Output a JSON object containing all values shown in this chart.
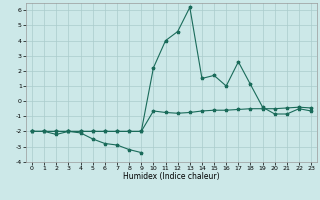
{
  "xlabel": "Humidex (Indice chaleur)",
  "x_values": [
    0,
    1,
    2,
    3,
    4,
    5,
    6,
    7,
    8,
    9,
    10,
    11,
    12,
    13,
    14,
    15,
    16,
    17,
    18,
    19,
    20,
    21,
    22,
    23
  ],
  "line1_x": [
    0,
    1,
    2,
    3,
    4,
    5,
    6,
    7,
    8,
    9
  ],
  "line1_y": [
    -2,
    -2,
    -2.2,
    -2,
    -2.1,
    -2.5,
    -2.8,
    -2.9,
    -3.2,
    -3.4
  ],
  "line2": [
    -2,
    -2,
    -2,
    -2,
    -2,
    -2,
    -2,
    -2,
    -2,
    -2,
    -0.65,
    -0.75,
    -0.8,
    -0.75,
    -0.65,
    -0.6,
    -0.6,
    -0.55,
    -0.5,
    -0.5,
    -0.5,
    -0.45,
    -0.4,
    -0.45
  ],
  "line3": [
    -2,
    -2,
    -2,
    -2,
    -2,
    -2,
    -2,
    -2,
    -2,
    -2,
    2.2,
    4.0,
    4.6,
    6.2,
    1.5,
    1.7,
    1.0,
    2.6,
    1.1,
    -0.4,
    -0.85,
    -0.85,
    -0.5,
    -0.65
  ],
  "line_color": "#1a6b5a",
  "bg_color": "#cce8e8",
  "grid_color": "#aacccc",
  "ylim": [
    -4,
    6.5
  ],
  "xlim": [
    -0.5,
    23.5
  ],
  "yticks": [
    -4,
    -3,
    -2,
    -1,
    0,
    1,
    2,
    3,
    4,
    5,
    6
  ],
  "xticks": [
    0,
    1,
    2,
    3,
    4,
    5,
    6,
    7,
    8,
    9,
    10,
    11,
    12,
    13,
    14,
    15,
    16,
    17,
    18,
    19,
    20,
    21,
    22,
    23
  ]
}
